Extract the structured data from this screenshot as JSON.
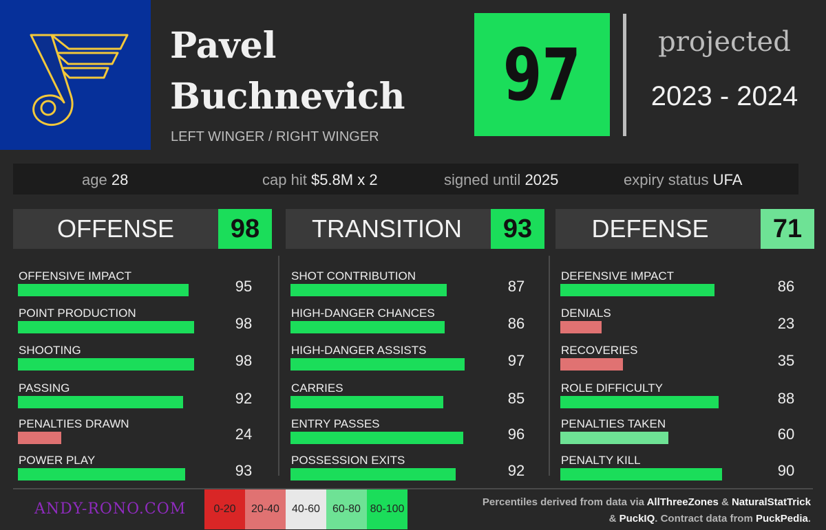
{
  "player": {
    "first_name": "Pavel",
    "last_name": "Buchnevich",
    "position": "LEFT WINGER / RIGHT WINGER",
    "overall": "97",
    "projected_label": "projected",
    "season": "2023 - 2024",
    "team_logo": "st-louis-blues-note-logo"
  },
  "info": {
    "age_label": "age",
    "age": "28",
    "cap_label": "cap hit",
    "cap": "$5.8M x 2",
    "signed_label": "signed until",
    "signed": "2025",
    "expiry_label": "expiry status",
    "expiry": "UFA"
  },
  "panels": [
    {
      "title": "OFFENSE",
      "score": "98",
      "score_color": "#1bdd5a",
      "metrics": [
        {
          "label": "OFFENSIVE IMPACT",
          "value": 95
        },
        {
          "label": "POINT PRODUCTION",
          "value": 98
        },
        {
          "label": "SHOOTING",
          "value": 98
        },
        {
          "label": "PASSING",
          "value": 92
        },
        {
          "label": "PENALTIES DRAWN",
          "value": 24
        },
        {
          "label": "POWER PLAY",
          "value": 93
        }
      ]
    },
    {
      "title": "TRANSITION",
      "score": "93",
      "score_color": "#1bdd5a",
      "metrics": [
        {
          "label": "SHOT CONTRIBUTION",
          "value": 87
        },
        {
          "label": "HIGH-DANGER CHANCES",
          "value": 86
        },
        {
          "label": "HIGH-DANGER ASSISTS",
          "value": 97
        },
        {
          "label": "CARRIES",
          "value": 85
        },
        {
          "label": "ENTRY PASSES",
          "value": 96
        },
        {
          "label": "POSSESSION EXITS",
          "value": 92
        }
      ]
    },
    {
      "title": "DEFENSE",
      "score": "71",
      "score_color": "#6ee295",
      "metrics": [
        {
          "label": "DEFENSIVE IMPACT",
          "value": 86
        },
        {
          "label": "DENIALS",
          "value": 23
        },
        {
          "label": "RECOVERIES",
          "value": 35
        },
        {
          "label": "ROLE DIFFICULTY",
          "value": 88
        },
        {
          "label": "PENALTIES TAKEN",
          "value": 60
        },
        {
          "label": "PENALTY KILL",
          "value": 90
        }
      ]
    }
  ],
  "legend": [
    {
      "label": "0-20",
      "color": "#d92626"
    },
    {
      "label": "20-40",
      "color": "#e07272"
    },
    {
      "label": "40-60",
      "color": "#e8e8e8"
    },
    {
      "label": "60-80",
      "color": "#6ee295"
    },
    {
      "label": "80-100",
      "color": "#1bdd5a"
    }
  ],
  "footer": {
    "website": "ANDY-RONO.COM",
    "src_pre": "Percentiles derived from data via ",
    "src_a": "AllThreeZones",
    "src_amp1": " & ",
    "src_b": "NaturalStatTrick",
    "src_amp2": "& ",
    "src_c": "PuckIQ",
    "src_mid": ". Contract data from ",
    "src_d": "PuckPedia",
    "src_end": "."
  }
}
